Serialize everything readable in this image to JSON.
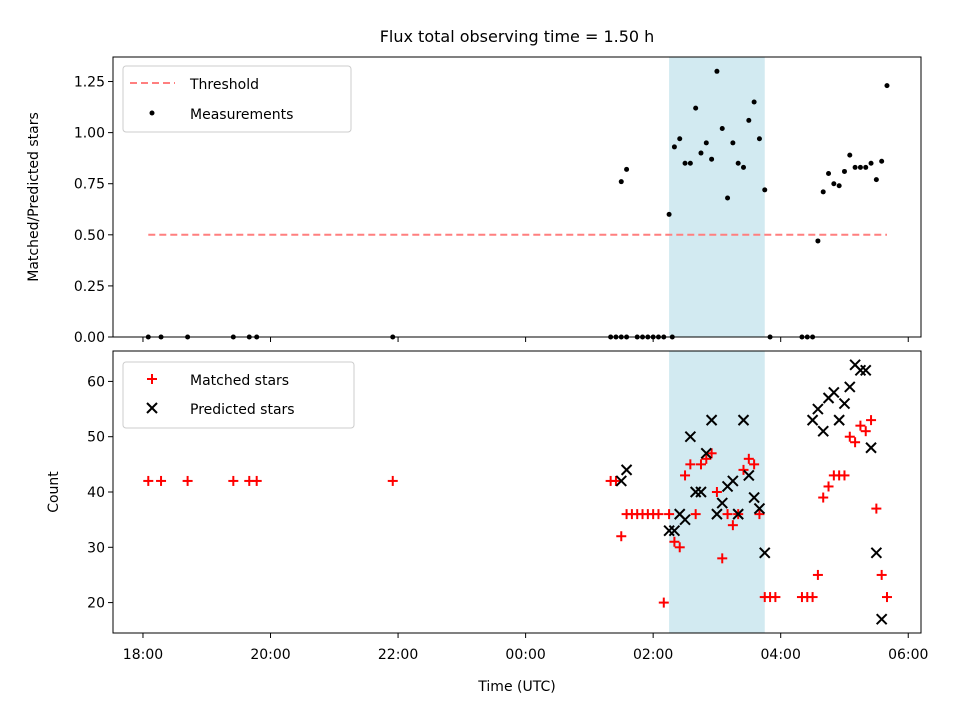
{
  "figure": {
    "title": "Flux total observing time = 1.50 h",
    "xlabel": "Time (UTC)",
    "x_ticks": [
      "18:00",
      "20:00",
      "22:00",
      "00:00",
      "02:00",
      "04:00",
      "06:00"
    ]
  },
  "colors": {
    "threshold": "#ff7f7f",
    "measurements": "#000000",
    "matched": "#ff0000",
    "predicted": "#000000",
    "span": "#add8e6"
  },
  "chart_data": [
    {
      "type": "scatter",
      "ylabel": "Matched/Predicted stars",
      "xlim_hours_after_1800": [
        -0.47,
        12.2
      ],
      "ylim": [
        0,
        1.37
      ],
      "y_ticks": [
        "0.00",
        "0.25",
        "0.50",
        "0.75",
        "1.00",
        "1.25"
      ],
      "highlight_span_utc": [
        "02:15",
        "03:45"
      ],
      "legend": {
        "position": "upper left",
        "entries": [
          "Threshold",
          "Measurements"
        ]
      },
      "threshold": {
        "name": "Threshold",
        "y": 0.5,
        "x_range_utc": [
          "18:05",
          "05:40"
        ]
      },
      "series": [
        {
          "name": "Measurements",
          "x_utc": [
            "18:05",
            "18:17",
            "18:42",
            "19:25",
            "19:40",
            "19:47",
            "21:55",
            "01:20",
            "01:25",
            "01:30",
            "01:35",
            "01:45",
            "01:50",
            "01:55",
            "02:00",
            "02:05",
            "02:10",
            "02:15",
            "02:18",
            "02:20",
            "02:25",
            "02:30",
            "02:35",
            "02:40",
            "02:45",
            "02:50",
            "02:55",
            "03:00",
            "03:05",
            "03:10",
            "03:15",
            "03:20",
            "03:25",
            "03:30",
            "03:35",
            "03:40",
            "03:45",
            "03:50",
            "04:20",
            "04:25",
            "04:30",
            "04:35",
            "04:40",
            "04:45",
            "04:50",
            "04:55",
            "05:00",
            "05:05",
            "05:10",
            "05:15",
            "05:20",
            "05:25",
            "05:30",
            "05:35",
            "05:40",
            "01:30",
            "01:35"
          ],
          "y": [
            0,
            0,
            0,
            0,
            0,
            0,
            0,
            0,
            0,
            0,
            0,
            0,
            0,
            0,
            0,
            0,
            0,
            0.6,
            0,
            0.93,
            0.97,
            0.85,
            0.85,
            1.12,
            0.9,
            0.95,
            0.87,
            1.3,
            1.02,
            0.68,
            0.95,
            0.85,
            0.83,
            1.06,
            1.15,
            0.97,
            0.72,
            0,
            0,
            0,
            0,
            0.47,
            0.71,
            0.8,
            0.75,
            0.74,
            0.81,
            0.89,
            0.83,
            0.83,
            0.83,
            0.85,
            0.77,
            0.86,
            1.23,
            0.76,
            0.82
          ]
        }
      ]
    },
    {
      "type": "scatter",
      "ylabel": "Count",
      "xlim_hours_after_1800": [
        -0.47,
        12.2
      ],
      "ylim": [
        14.5,
        65.5
      ],
      "y_ticks": [
        "20",
        "30",
        "40",
        "50",
        "60"
      ],
      "highlight_span_utc": [
        "02:15",
        "03:45"
      ],
      "legend": {
        "position": "upper left",
        "entries": [
          "Matched stars",
          "Predicted stars"
        ]
      },
      "series": [
        {
          "name": "Matched stars",
          "x_utc": [
            "18:05",
            "18:17",
            "18:42",
            "19:25",
            "19:40",
            "19:47",
            "21:55",
            "01:20",
            "01:25",
            "01:30",
            "01:35",
            "01:40",
            "01:45",
            "01:50",
            "01:55",
            "02:00",
            "02:05",
            "02:10",
            "02:15",
            "02:20",
            "02:25",
            "02:30",
            "02:35",
            "02:40",
            "02:45",
            "02:50",
            "02:55",
            "03:00",
            "03:05",
            "03:10",
            "03:15",
            "03:20",
            "03:25",
            "03:30",
            "03:35",
            "03:40",
            "03:45",
            "03:50",
            "03:55",
            "04:20",
            "04:25",
            "04:30",
            "04:35",
            "04:40",
            "04:45",
            "04:50",
            "04:55",
            "05:00",
            "05:05",
            "05:10",
            "05:15",
            "05:20",
            "05:25",
            "05:30",
            "05:35",
            "05:40"
          ],
          "y": [
            42,
            42,
            42,
            42,
            42,
            42,
            42,
            42,
            42,
            32,
            36,
            36,
            36,
            36,
            36,
            36,
            36,
            20,
            36,
            31,
            30,
            43,
            45,
            36,
            45,
            46,
            47,
            40,
            28,
            36,
            34,
            36,
            44,
            46,
            45,
            36,
            21,
            21,
            21,
            21,
            21,
            21,
            25,
            39,
            41,
            43,
            43,
            43,
            50,
            49,
            52,
            51,
            53,
            37,
            25,
            21
          ]
        },
        {
          "name": "Predicted stars",
          "x_utc": [
            "01:30",
            "01:35",
            "02:15",
            "02:20",
            "02:25",
            "02:30",
            "02:35",
            "02:40",
            "02:45",
            "02:50",
            "02:55",
            "03:00",
            "03:05",
            "03:10",
            "03:15",
            "03:20",
            "03:25",
            "03:30",
            "03:35",
            "03:40",
            "03:45",
            "04:30",
            "04:35",
            "04:40",
            "04:45",
            "04:50",
            "04:55",
            "05:00",
            "05:05",
            "05:10",
            "05:15",
            "05:20",
            "05:25",
            "05:30",
            "05:35"
          ],
          "y": [
            42,
            44,
            33,
            33,
            36,
            35,
            50,
            40,
            40,
            47,
            53,
            36,
            38,
            41,
            42,
            36,
            53,
            43,
            39,
            37,
            29,
            53,
            55,
            51,
            57,
            58,
            53,
            56,
            59,
            63,
            62,
            62,
            48,
            29,
            17
          ]
        }
      ]
    }
  ]
}
